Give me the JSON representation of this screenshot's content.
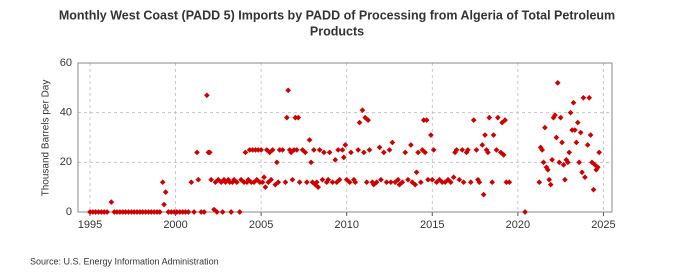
{
  "chart_data": {
    "type": "scatter",
    "title": "Monthly West Coast (PADD 5) Imports by PADD of Processing from Algeria of Total Petroleum Products",
    "y_label": "Thousand Barrels per Day",
    "source": "Source: U.S. Energy Information Administration",
    "xlim": [
      1994.3,
      2025.5
    ],
    "xticks": [
      1995,
      2000,
      2005,
      2010,
      2015,
      2020,
      2025
    ],
    "ylim": [
      0,
      60
    ],
    "yticks": [
      0,
      20,
      40,
      60
    ],
    "grid": true,
    "x": [
      1995.0,
      1995.17,
      1995.33,
      1995.5,
      1995.67,
      1995.83,
      1996.0,
      1996.25,
      1996.42,
      1996.58,
      1996.75,
      1996.92,
      1997.08,
      1997.25,
      1997.42,
      1997.58,
      1997.75,
      1997.92,
      1998.08,
      1998.25,
      1998.42,
      1998.58,
      1998.75,
      1998.92,
      1999.08,
      1999.25,
      1999.33,
      1999.42,
      1999.58,
      1999.75,
      1999.92,
      2000.08,
      2000.25,
      2000.42,
      2000.58,
      2000.75,
      2000.92,
      2001.08,
      2001.25,
      2001.33,
      2001.5,
      2001.67,
      2001.83,
      2001.92,
      2002.0,
      2002.08,
      2002.25,
      2002.33,
      2002.42,
      2002.5,
      2002.67,
      2002.75,
      2002.83,
      2002.92,
      2003.08,
      2003.17,
      2003.25,
      2003.33,
      2003.42,
      2003.58,
      2003.75,
      2003.83,
      2004.0,
      2004.08,
      2004.17,
      2004.25,
      2004.33,
      2004.42,
      2004.5,
      2004.58,
      2004.67,
      2004.75,
      2004.83,
      2004.92,
      2005.0,
      2005.08,
      2005.17,
      2005.25,
      2005.33,
      2005.42,
      2005.5,
      2005.58,
      2005.67,
      2005.83,
      2005.92,
      2006.0,
      2006.08,
      2006.25,
      2006.42,
      2006.5,
      2006.58,
      2006.67,
      2006.75,
      2006.83,
      2006.92,
      2007.0,
      2007.08,
      2007.17,
      2007.25,
      2007.42,
      2007.58,
      2007.67,
      2007.83,
      2007.92,
      2008.0,
      2008.08,
      2008.17,
      2008.25,
      2008.33,
      2008.42,
      2008.58,
      2008.67,
      2008.83,
      2008.92,
      2009.0,
      2009.17,
      2009.33,
      2009.42,
      2009.5,
      2009.58,
      2009.75,
      2009.83,
      2009.92,
      2010.0,
      2010.17,
      2010.25,
      2010.42,
      2010.5,
      2010.67,
      2010.75,
      2010.92,
      2011.0,
      2011.08,
      2011.17,
      2011.25,
      2011.33,
      2011.5,
      2011.58,
      2011.75,
      2011.92,
      2012.0,
      2012.17,
      2012.33,
      2012.5,
      2012.58,
      2012.67,
      2012.83,
      2013.0,
      2013.08,
      2013.25,
      2013.42,
      2013.58,
      2013.75,
      2013.83,
      2014.0,
      2014.08,
      2014.17,
      2014.33,
      2014.42,
      2014.5,
      2014.58,
      2014.67,
      2014.75,
      2014.92,
      2015.0,
      2015.08,
      2015.25,
      2015.42,
      2015.58,
      2015.75,
      2015.92,
      2016.08,
      2016.25,
      2016.33,
      2016.42,
      2016.58,
      2016.75,
      2016.83,
      2017.0,
      2017.08,
      2017.25,
      2017.42,
      2017.58,
      2017.67,
      2017.75,
      2017.92,
      2018.0,
      2018.08,
      2018.17,
      2018.25,
      2018.33,
      2018.5,
      2018.58,
      2018.75,
      2018.83,
      2019.0,
      2019.08,
      2019.17,
      2019.25,
      2019.33,
      2019.5,
      2020.42,
      2021.25,
      2021.33,
      2021.42,
      2021.5,
      2021.58,
      2021.67,
      2021.75,
      2021.83,
      2021.92,
      2022.0,
      2022.08,
      2022.17,
      2022.25,
      2022.33,
      2022.42,
      2022.5,
      2022.58,
      2022.67,
      2022.75,
      2022.83,
      2022.92,
      2023.0,
      2023.08,
      2023.17,
      2023.25,
      2023.33,
      2023.42,
      2023.5,
      2023.58,
      2023.67,
      2023.75,
      2023.83,
      2023.92,
      2024.08,
      2024.17,
      2024.25,
      2024.33,
      2024.42,
      2024.5,
      2024.58,
      2024.67,
      2024.75
    ],
    "series": [
      {
        "color": "#cc0000",
        "values": [
          0,
          0,
          0,
          0,
          0,
          0,
          0,
          4,
          0,
          0,
          0,
          0,
          0,
          0,
          0,
          0,
          0,
          0,
          0,
          0,
          0,
          0,
          0,
          0,
          0,
          12,
          3,
          8,
          0,
          0,
          0,
          0,
          0,
          0,
          0,
          0,
          12,
          0,
          24,
          13,
          0,
          0,
          47,
          24,
          24,
          13,
          1,
          12,
          0,
          13,
          12,
          0,
          13,
          12,
          13,
          12,
          0,
          12,
          13,
          12,
          0,
          13,
          12,
          24,
          12,
          13,
          25,
          12,
          25,
          12,
          25,
          13,
          25,
          12,
          25,
          12,
          14,
          10,
          25,
          12,
          24,
          13,
          25,
          11,
          20,
          12,
          25,
          25,
          12,
          38,
          49,
          25,
          24,
          13,
          25,
          38,
          25,
          38,
          12,
          25,
          24,
          12,
          29,
          20,
          12,
          25,
          11,
          12,
          10,
          25,
          13,
          24,
          12,
          13,
          24,
          12,
          21,
          12,
          25,
          13,
          25,
          22,
          27,
          13,
          12,
          24,
          13,
          12,
          25,
          36,
          41,
          24,
          38,
          12,
          37,
          25,
          12,
          11,
          12,
          26,
          13,
          24,
          12,
          25,
          12,
          28,
          12,
          13,
          11,
          12,
          24,
          13,
          27,
          12,
          11,
          16,
          24,
          12,
          25,
          37,
          24,
          37,
          13,
          31,
          13,
          25,
          12,
          13,
          12,
          12,
          13,
          12,
          14,
          24,
          25,
          13,
          25,
          12,
          24,
          25,
          12,
          37,
          25,
          13,
          12,
          27,
          7,
          31,
          25,
          24,
          38,
          12,
          31,
          25,
          38,
          24,
          36,
          23,
          37,
          12,
          12,
          0,
          12,
          26,
          25,
          20,
          34,
          18,
          17,
          13,
          11,
          21,
          38,
          39,
          30,
          52,
          20,
          38,
          28,
          19,
          13,
          21,
          20,
          24,
          40,
          33,
          44,
          33,
          28,
          36,
          20,
          32,
          16,
          46,
          14,
          27,
          46,
          31,
          20,
          9,
          19,
          17,
          18,
          24
        ]
      }
    ]
  }
}
